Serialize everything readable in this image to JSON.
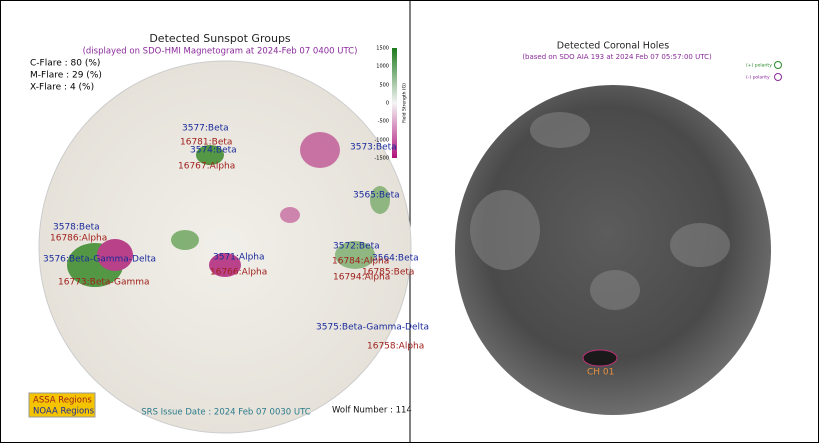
{
  "left_panel": {
    "title": "Detected Sunspot Groups",
    "subtitle": "(displayed on SDO-HMI Magnetogram at 2024-Feb 07 0400 UTC)",
    "flares": [
      "C-Flare : 80 (%)",
      "M-Flare : 29 (%)",
      "X-Flare : 4 (%)"
    ],
    "colorbar": {
      "label": "Field Strength (G)",
      "ticks": [
        "1500",
        "1000",
        "500",
        "0",
        "-500",
        "-1000",
        "-1500"
      ]
    },
    "assa_regions": [
      "3577:Beta",
      "3574:Beta",
      "3573:Beta",
      "3565:Beta",
      "3578:Beta",
      "3576:Beta-Gamma-Delta",
      "3571:Alpha",
      "3572:Beta",
      "3564:Beta",
      "3575:Beta-Gamma-Delta"
    ],
    "noaa_regions": [
      "16781:Beta",
      "16767:Alpha",
      "16786:Alpha",
      "16773:Beta-Gamma",
      "16766:Alpha",
      "16784:Alpha",
      "16785:Beta",
      "16794:Alpha",
      "16758:Alpha"
    ],
    "legend": [
      "ASSA Regions",
      "NOAA Regions"
    ],
    "issue_date": "SRS Issue Date : 2024 Feb 07 0030 UTC",
    "wolf_number": "Wolf Number : 114"
  },
  "right_panel": {
    "title": "Detected Coronal Holes",
    "subtitle": "(based on SDO AIA 193 at 2024 Feb 07 05:57:00 UTC)",
    "legend": [
      "(+) polarity",
      "(-) polarity"
    ],
    "holes": [
      "CH 01"
    ]
  }
}
